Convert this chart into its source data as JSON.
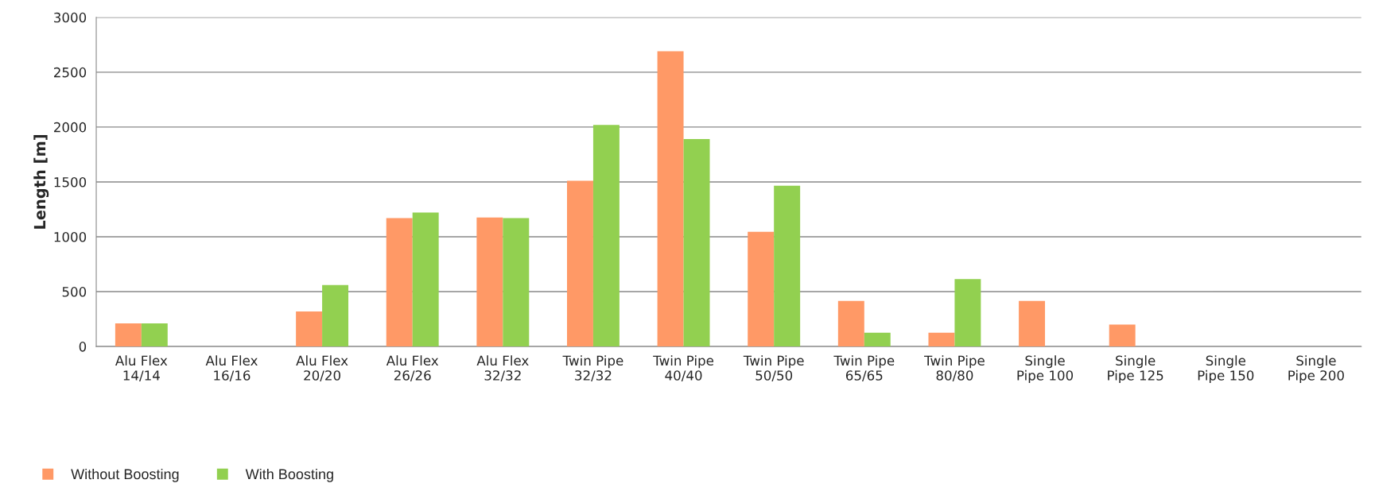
{
  "chart_data": {
    "type": "bar",
    "ylabel": "Length [m]",
    "categories": [
      "Alu Flex\n14/14",
      "Alu Flex\n16/16",
      "Alu Flex\n20/20",
      "Alu Flex\n26/26",
      "Alu Flex\n32/32",
      "Twin Pipe\n32/32",
      "Twin Pipe\n40/40",
      "Twin Pipe\n50/50",
      "Twin Pipe\n65/65",
      "Twin Pipe\n80/80",
      "Single\nPipe 100",
      "Single\nPipe 125",
      "Single\nPipe 150",
      "Single\nPipe 200"
    ],
    "series": [
      {
        "name": "Without Boosting",
        "color": "#ff9966",
        "values": [
          210,
          0,
          320,
          1170,
          1175,
          1510,
          2690,
          1045,
          415,
          125,
          415,
          200,
          0,
          0
        ]
      },
      {
        "name": "With Boosting",
        "color": "#92d050",
        "values": [
          210,
          0,
          560,
          1220,
          1170,
          2020,
          1890,
          1465,
          125,
          615,
          0,
          0,
          0,
          0
        ]
      }
    ],
    "ylim": [
      0,
      3000
    ],
    "yticks": [
      0,
      500,
      1000,
      1500,
      2000,
      2500,
      3000
    ],
    "grid": "y",
    "legend": "bottom left",
    "marker": "square"
  }
}
